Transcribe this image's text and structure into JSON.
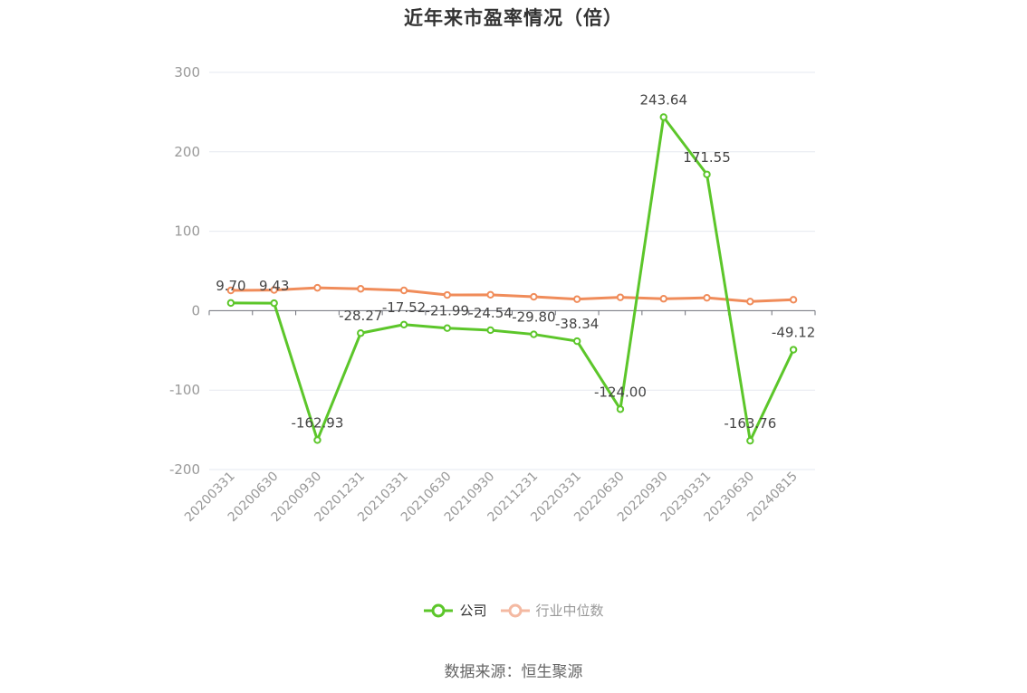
{
  "chart_data": {
    "type": "line",
    "title": "近年来市盈率情况（倍）",
    "categories": [
      "20200331",
      "20200630",
      "20200930",
      "20201231",
      "20210331",
      "20210630",
      "20210930",
      "20211231",
      "20220331",
      "20220630",
      "20220930",
      "20230331",
      "20230630",
      "20240815"
    ],
    "series": [
      {
        "name": "公司",
        "color": "#5cc62a",
        "values": [
          9.7,
          9.43,
          -162.93,
          -28.27,
          -17.52,
          -21.99,
          -24.54,
          -29.8,
          -38.34,
          -124.0,
          243.64,
          171.55,
          -163.76,
          -49.12
        ],
        "labels": [
          "9.70",
          "9.43",
          "-162.93",
          "-28.27",
          "-17.52",
          "-21.99",
          "-24.54",
          "-29.80",
          "-38.34",
          "-124.00",
          "243.64",
          "171.55",
          "-163.76",
          "-49.12"
        ]
      },
      {
        "name": "行业中位数",
        "color": "#f08c5a",
        "values": [
          25.5,
          26.0,
          28.8,
          27.5,
          25.5,
          19.8,
          20.0,
          17.5,
          14.5,
          16.8,
          15.0,
          16.2,
          11.5,
          13.8
        ]
      }
    ],
    "ylim": [
      -200,
      300
    ],
    "yticks": [
      300,
      200,
      100,
      0,
      -100,
      -200
    ],
    "xlabel": "",
    "ylabel": "",
    "grid": true,
    "legend_position": "bottom-center"
  },
  "legend": {
    "company": "公司",
    "industry": "行业中位数"
  },
  "source": "数据来源：恒生聚源",
  "colors": {
    "company_line": "#5cc62a",
    "industry_line": "#f08c5a",
    "industry_legend": "#f4b9a2",
    "grid": "#e6e9f0",
    "axis": "#6e7079",
    "tick_text": "#999999",
    "label_text": "#444444"
  }
}
